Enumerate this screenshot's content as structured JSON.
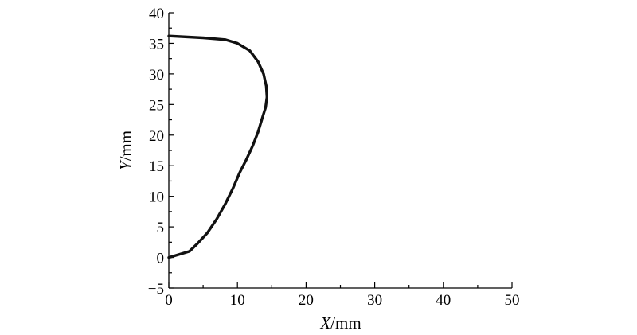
{
  "chart_data": {
    "type": "line",
    "xlabel_var": "X",
    "xlabel_unit": "/mm",
    "ylabel_var": "Y",
    "ylabel_unit": "/mm",
    "xlim": [
      0,
      50
    ],
    "ylim": [
      -5,
      40
    ],
    "x_ticks": [
      0,
      10,
      20,
      30,
      40,
      50
    ],
    "y_ticks": [
      -5,
      0,
      5,
      10,
      15,
      20,
      25,
      30,
      35,
      40
    ],
    "y_tick_labels": [
      "−5",
      "0",
      "5",
      "10",
      "15",
      "20",
      "25",
      "30",
      "35",
      "40"
    ],
    "grid": false,
    "series": [
      {
        "x": [
          0,
          3.0,
          4.2,
          5.6,
          7.0,
          8.2,
          9.3,
          10.3,
          11.3,
          12.2,
          13.0,
          13.6,
          14.1,
          14.3,
          14.2,
          13.8,
          13.0,
          11.8,
          10.0,
          8.2,
          5.0,
          0
        ],
        "y": [
          0,
          1,
          2.3,
          4.0,
          6.3,
          8.7,
          11.2,
          13.8,
          16.0,
          18.2,
          20.5,
          22.7,
          24.5,
          26.2,
          28.0,
          30.0,
          32.0,
          33.8,
          35.0,
          35.6,
          35.9,
          36.2
        ]
      }
    ]
  }
}
